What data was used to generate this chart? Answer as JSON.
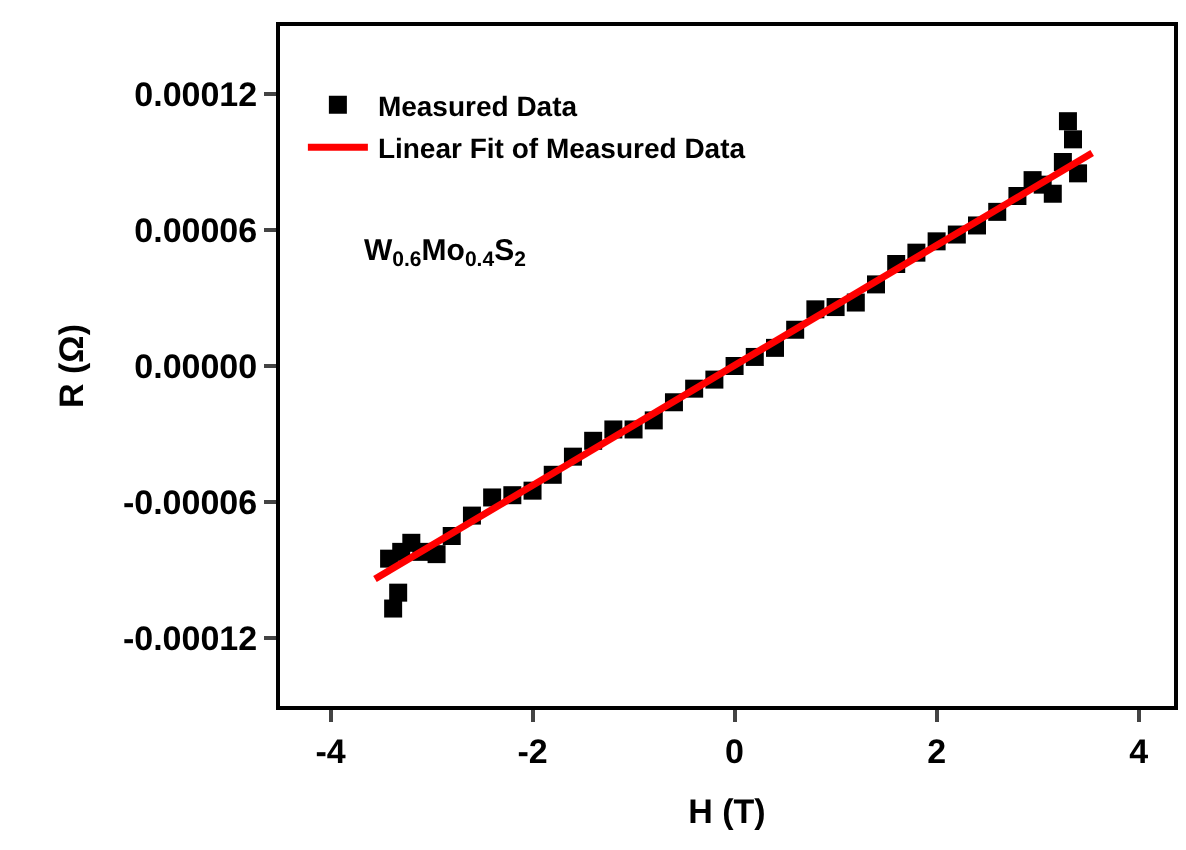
{
  "chart_data": {
    "type": "scatter",
    "xlabel": "H (T)",
    "ylabel": "R (Ω)",
    "xlim": [
      -4.5,
      4.35
    ],
    "xticks": [
      -4,
      -2,
      0,
      2,
      4
    ],
    "ylim": [
      -0.00015,
      0.00015
    ],
    "yticks": [
      {
        "value": 0.00012,
        "label": "0.00012"
      },
      {
        "value": 6e-05,
        "label": "0.00006"
      },
      {
        "value": 0,
        "label": "0.00000"
      },
      {
        "value": -6e-05,
        "label": "-0.00006"
      },
      {
        "value": -0.00012,
        "label": "-0.00012"
      }
    ],
    "legend": "top left",
    "annotations": [
      "W$_{0.6}$Mo$_{0.4}$S$_{2}$"
    ],
    "series": [
      {
        "name": "Measured Data",
        "color": "#000000",
        "marker": "square",
        "x": [
          -3.42,
          -3.38,
          -3.33,
          -3.3,
          -3.2,
          -3.1,
          -2.95,
          -2.8,
          -2.6,
          -2.4,
          -2.2,
          -2.0,
          -1.8,
          -1.6,
          -1.4,
          -1.2,
          -1.0,
          -0.8,
          -0.6,
          -0.4,
          -0.2,
          0,
          0.2,
          0.4,
          0.6,
          0.8,
          1.0,
          1.2,
          1.4,
          1.6,
          1.8,
          2.0,
          2.2,
          2.4,
          2.6,
          2.8,
          2.95,
          3.05,
          3.15,
          3.25,
          3.3,
          3.35,
          3.4
        ],
        "values": [
          -8.5e-05,
          -0.000107,
          -0.0001,
          -8.2e-05,
          -7.8e-05,
          -8.2e-05,
          -8.3e-05,
          -7.5e-05,
          -6.6e-05,
          -5.8e-05,
          -5.7e-05,
          -5.5e-05,
          -4.8e-05,
          -4e-05,
          -3.3e-05,
          -2.8e-05,
          -2.8e-05,
          -2.4e-05,
          -1.6e-05,
          -1e-05,
          -6e-06,
          0.0,
          4e-06,
          8e-06,
          1.6e-05,
          2.5e-05,
          2.6e-05,
          2.8e-05,
          3.6e-05,
          4.5e-05,
          5e-05,
          5.5e-05,
          5.8e-05,
          6.2e-05,
          6.8e-05,
          7.5e-05,
          8.2e-05,
          8e-05,
          7.6e-05,
          9e-05,
          0.000108,
          0.0001,
          8.5e-05
        ]
      },
      {
        "name": "Linear Fit of Measured Data",
        "color": "#ff0000",
        "type": "line",
        "x": [
          -3.56,
          3.54
        ],
        "values": [
          -9.4e-05,
          9.4e-05
        ]
      }
    ]
  }
}
